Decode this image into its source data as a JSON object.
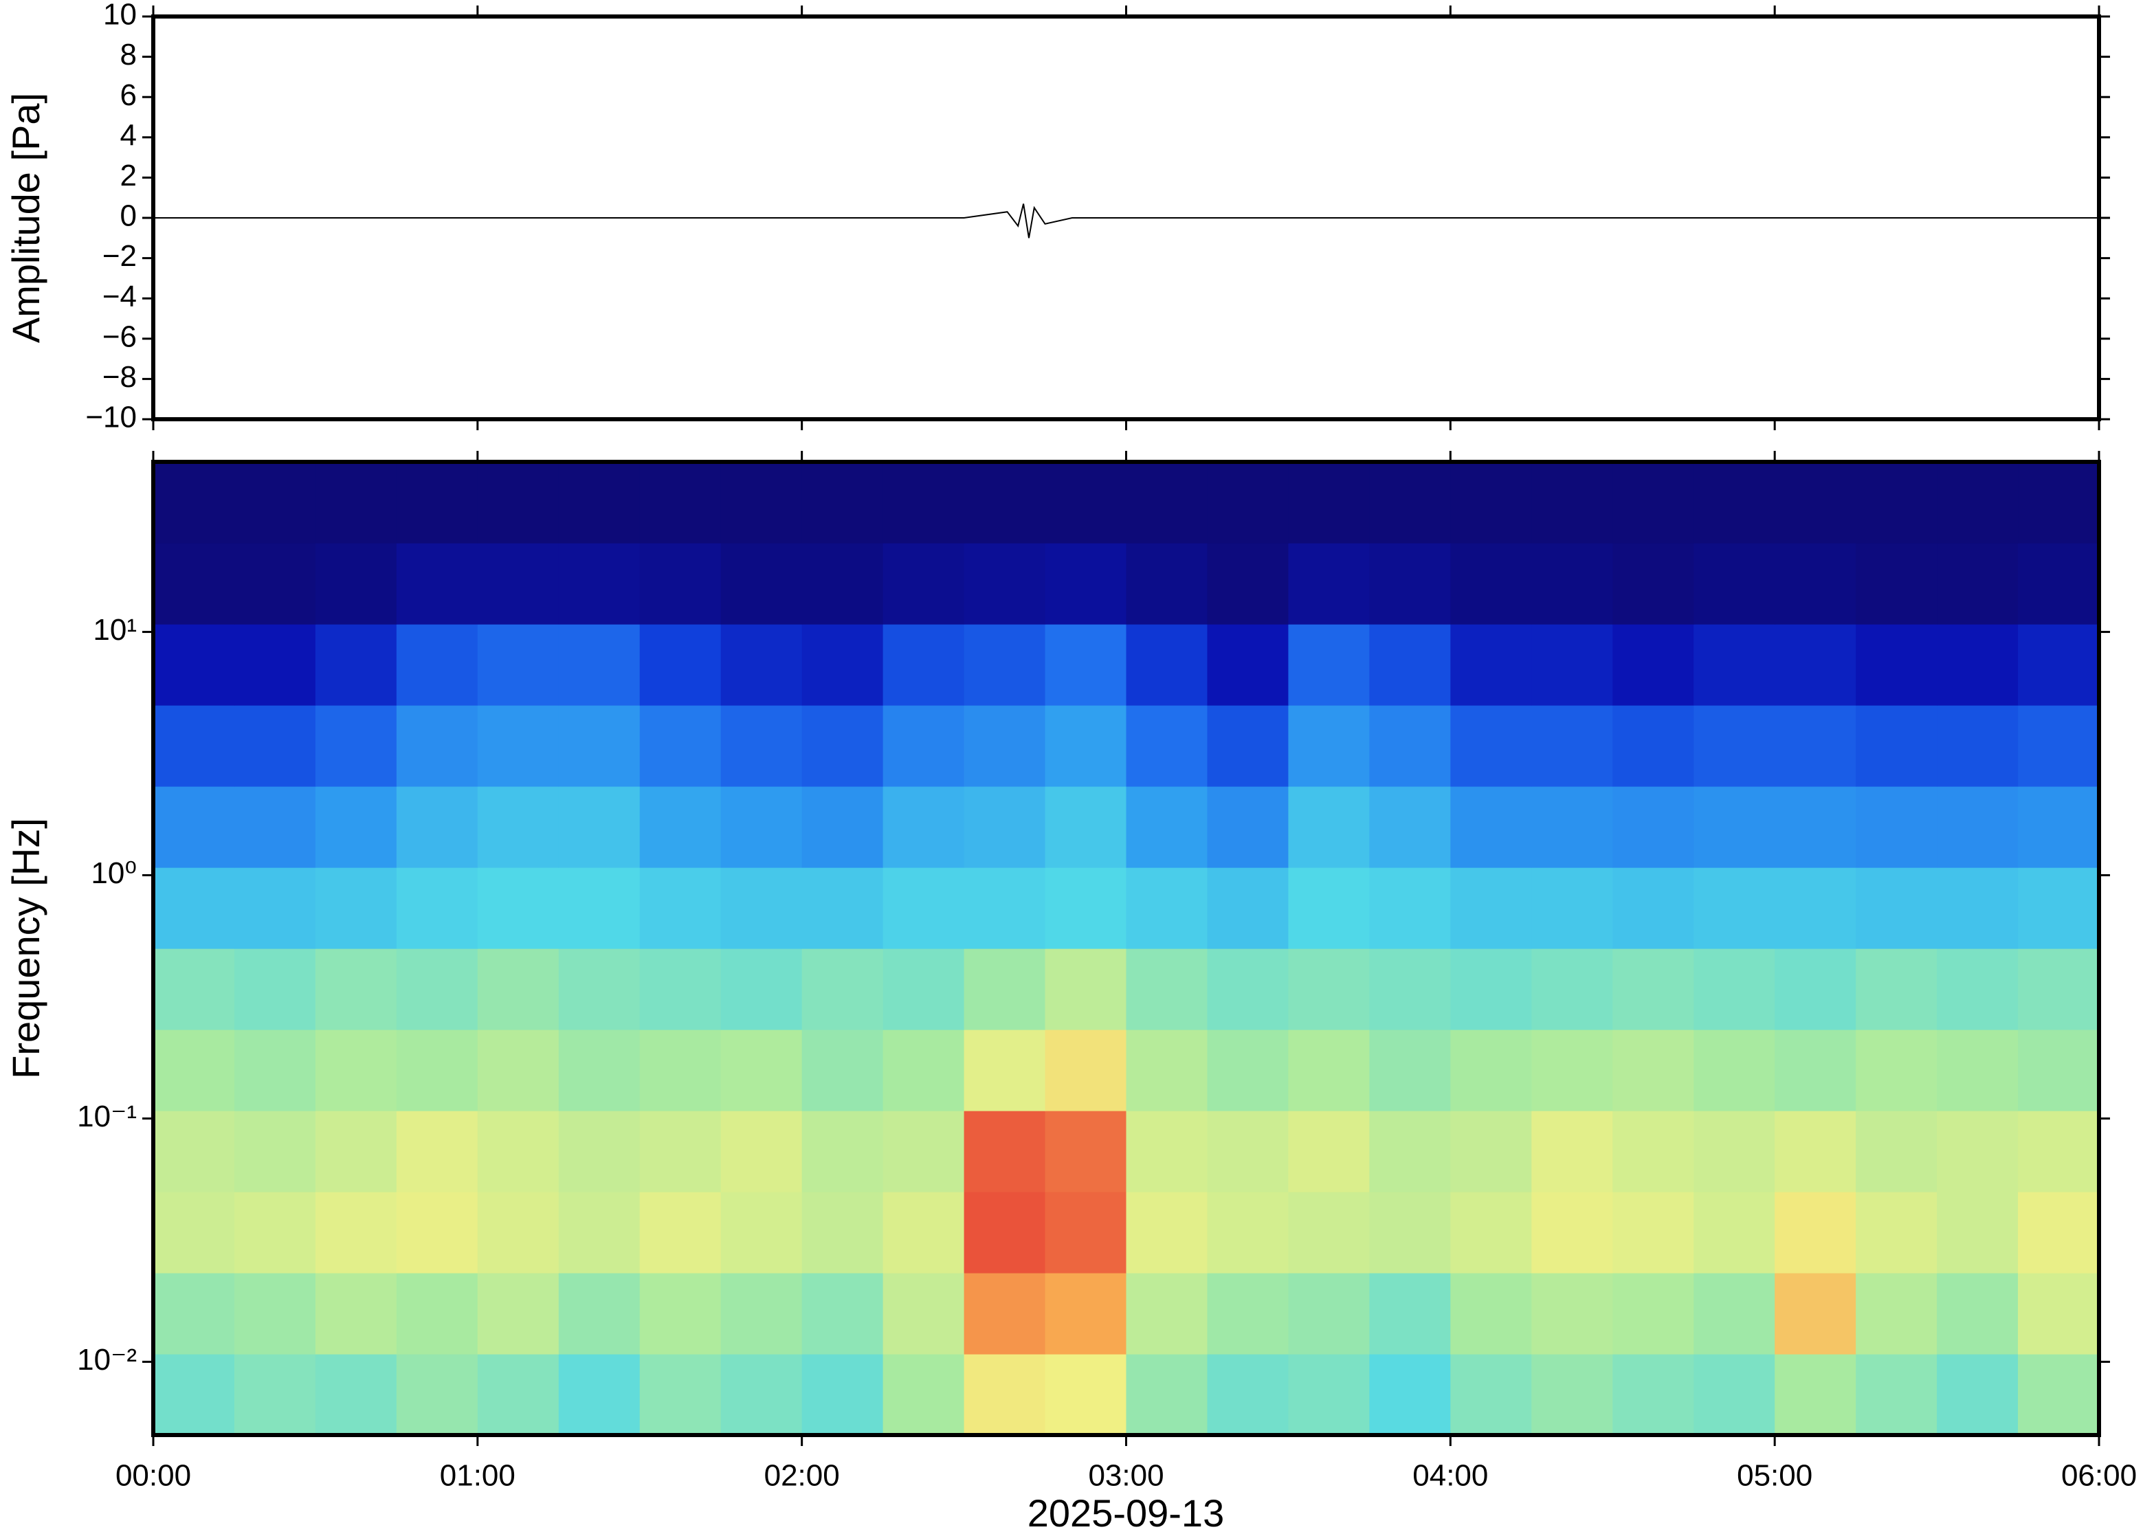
{
  "chart_data": [
    {
      "type": "line",
      "ylabel": "Amplitude [Pa]",
      "color": "#000000",
      "xlim": [
        0,
        360
      ],
      "ylim": [
        -10,
        10
      ],
      "yticks": [
        {
          "value": -10,
          "label": "−10"
        },
        {
          "value": -8,
          "label": "−8"
        },
        {
          "value": -6,
          "label": "−6"
        },
        {
          "value": -4,
          "label": "−4"
        },
        {
          "value": -2,
          "label": "−2"
        },
        0,
        2,
        4,
        6,
        8,
        10
      ],
      "x": [
        0,
        150,
        158,
        160,
        161,
        162,
        163,
        165,
        170,
        360
      ],
      "values": [
        0,
        0,
        0.3,
        -0.4,
        0.7,
        -1.0,
        0.5,
        -0.3,
        0,
        0
      ]
    },
    {
      "type": "heatmap",
      "ylabel": "Frequency [Hz]",
      "xlabel": "2025-09-13",
      "log_y": true,
      "xlim": [
        0,
        360
      ],
      "ylim": [
        0.005,
        50
      ],
      "xticks": [
        {
          "value": 0,
          "label": "00:00"
        },
        {
          "value": 60,
          "label": "01:00"
        },
        {
          "value": 120,
          "label": "02:00"
        },
        {
          "value": 180,
          "label": "03:00"
        },
        {
          "value": 240,
          "label": "04:00"
        },
        {
          "value": 300,
          "label": "05:00"
        },
        {
          "value": 360,
          "label": "06:00"
        }
      ],
      "yticks": [
        {
          "value": 0.01,
          "label": "10⁻²"
        },
        {
          "value": 0.1,
          "label": "10⁻¹"
        },
        {
          "value": 1,
          "label": "10⁰"
        },
        {
          "value": 10,
          "label": "10¹"
        }
      ],
      "zlim": [
        0,
        9
      ],
      "colormap": [
        "#0d0a78",
        "#0a14b4",
        "#1040dc",
        "#2070ee",
        "#30a0f0",
        "#50d8e8",
        "#a8eaa0",
        "#f0f084",
        "#f8a850",
        "#e84a38"
      ],
      "xbins": [
        0,
        15,
        30,
        45,
        60,
        75,
        90,
        105,
        120,
        135,
        150,
        165,
        180,
        195,
        210,
        225,
        240,
        255,
        270,
        285,
        300,
        315,
        330,
        345,
        360
      ],
      "ybins": [
        0.005,
        0.01077,
        0.02321,
        0.05,
        0.1077,
        0.2321,
        0.5,
        1.077,
        2.321,
        5,
        10.77,
        23.21,
        50
      ],
      "values": [
        [
          5.4,
          5.6,
          5.5,
          5.8,
          5.6,
          5.2,
          5.7,
          5.5,
          5.3,
          6.0,
          7.1,
          7.0,
          5.8,
          5.4,
          5.5,
          5.1,
          5.6,
          5.8,
          5.6,
          5.5,
          6.0,
          5.7,
          5.4,
          5.9
        ],
        [
          5.8,
          5.9,
          6.2,
          6.0,
          6.3,
          5.8,
          6.1,
          5.9,
          5.7,
          6.4,
          8.2,
          8.0,
          6.3,
          5.9,
          5.8,
          5.5,
          6.0,
          6.2,
          6.1,
          5.9,
          7.6,
          6.2,
          5.9,
          6.6
        ],
        [
          6.5,
          6.6,
          6.8,
          6.9,
          6.7,
          6.5,
          6.8,
          6.6,
          6.4,
          6.7,
          8.9,
          8.7,
          6.8,
          6.6,
          6.5,
          6.4,
          6.6,
          6.9,
          6.8,
          6.6,
          7.1,
          6.7,
          6.5,
          6.9
        ],
        [
          6.4,
          6.3,
          6.5,
          6.8,
          6.6,
          6.4,
          6.5,
          6.7,
          6.3,
          6.4,
          8.8,
          8.6,
          6.6,
          6.5,
          6.7,
          6.3,
          6.4,
          6.8,
          6.6,
          6.5,
          6.7,
          6.4,
          6.5,
          6.6
        ],
        [
          6.0,
          5.9,
          6.1,
          6.0,
          6.2,
          5.9,
          6.0,
          6.1,
          5.8,
          6.0,
          6.8,
          7.2,
          6.2,
          5.9,
          6.1,
          5.8,
          6.0,
          6.1,
          6.2,
          6.0,
          5.9,
          6.1,
          6.0,
          5.9
        ],
        [
          5.6,
          5.5,
          5.7,
          5.6,
          5.8,
          5.6,
          5.5,
          5.4,
          5.6,
          5.5,
          5.9,
          6.3,
          5.7,
          5.5,
          5.6,
          5.5,
          5.4,
          5.5,
          5.6,
          5.5,
          5.4,
          5.6,
          5.5,
          5.6
        ],
        [
          4.6,
          4.6,
          4.7,
          4.9,
          5.0,
          5.0,
          4.8,
          4.7,
          4.7,
          4.9,
          4.9,
          5.0,
          4.8,
          4.6,
          5.0,
          4.9,
          4.7,
          4.7,
          4.6,
          4.7,
          4.7,
          4.6,
          4.6,
          4.7
        ],
        [
          3.6,
          3.6,
          3.9,
          4.4,
          4.6,
          4.6,
          4.1,
          3.9,
          3.7,
          4.3,
          4.4,
          4.7,
          4.0,
          3.6,
          4.6,
          4.3,
          3.7,
          3.7,
          3.6,
          3.7,
          3.7,
          3.6,
          3.6,
          3.7
        ],
        [
          2.4,
          2.4,
          2.8,
          3.6,
          3.8,
          3.8,
          3.2,
          2.8,
          2.6,
          3.4,
          3.6,
          4.0,
          3.0,
          2.4,
          3.8,
          3.4,
          2.6,
          2.6,
          2.4,
          2.6,
          2.6,
          2.4,
          2.4,
          2.6
        ],
        [
          1.0,
          1.0,
          1.5,
          2.5,
          2.8,
          2.8,
          2.0,
          1.5,
          1.3,
          2.3,
          2.5,
          3.0,
          1.8,
          1.0,
          2.8,
          2.3,
          1.3,
          1.3,
          1.0,
          1.3,
          1.3,
          1.0,
          1.0,
          1.3
        ],
        [
          0.1,
          0.1,
          0.2,
          0.5,
          0.5,
          0.5,
          0.4,
          0.2,
          0.2,
          0.4,
          0.5,
          0.6,
          0.3,
          0.1,
          0.5,
          0.4,
          0.2,
          0.2,
          0.1,
          0.2,
          0.2,
          0.1,
          0.1,
          0.2
        ],
        [
          0,
          0,
          0,
          0,
          0,
          0,
          0,
          0,
          0,
          0,
          0,
          0,
          0,
          0,
          0,
          0,
          0,
          0,
          0,
          0,
          0,
          0,
          0,
          0
        ]
      ]
    }
  ]
}
